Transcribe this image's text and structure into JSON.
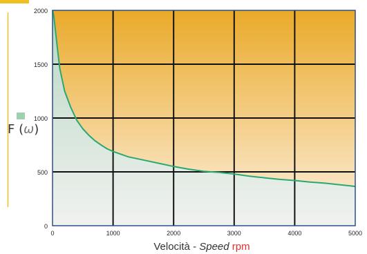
{
  "chart_data": {
    "type": "area",
    "xlabel_main": "Velocità - ",
    "xlabel_italic": "Speed",
    "xlabel_unit": "rpm",
    "ylabel_main": "F (",
    "ylabel_symbol": "ω",
    "ylabel_close": ")",
    "xlim": [
      0,
      5000
    ],
    "ylim": [
      0,
      2000
    ],
    "xticks": [
      "0",
      "1000",
      "2000",
      "3000",
      "4000",
      "5000"
    ],
    "yticks": [
      "0",
      "500",
      "1000",
      "1500",
      "2000"
    ],
    "grid": true,
    "series": [
      {
        "x": [
          0,
          20,
          50,
          80,
          120,
          200,
          300,
          400,
          500,
          600,
          700,
          800,
          900,
          1000,
          1250,
          1500,
          1750,
          2000,
          2250,
          2500,
          2750,
          3000,
          3250,
          3500,
          3750,
          4000,
          4250,
          4500,
          4750,
          5000
        ],
        "values": [
          2000,
          1950,
          1800,
          1650,
          1460,
          1250,
          1100,
          980,
          900,
          840,
          790,
          750,
          715,
          690,
          640,
          610,
          580,
          550,
          525,
          505,
          495,
          480,
          460,
          445,
          430,
          420,
          405,
          395,
          380,
          365
        ]
      }
    ],
    "colors": {
      "curve": "#2aa873",
      "fill_under_top": "#b8d6c4",
      "fill_under_bottom": "#f0f2ef",
      "fill_above_top": "#eaaa2a",
      "fill_above_bottom": "#fdf1e3",
      "grid": "#111111",
      "accent_bar": "#f0c020",
      "legend_swatch": "#9fd0b0",
      "unit_text": "#e03030"
    }
  }
}
